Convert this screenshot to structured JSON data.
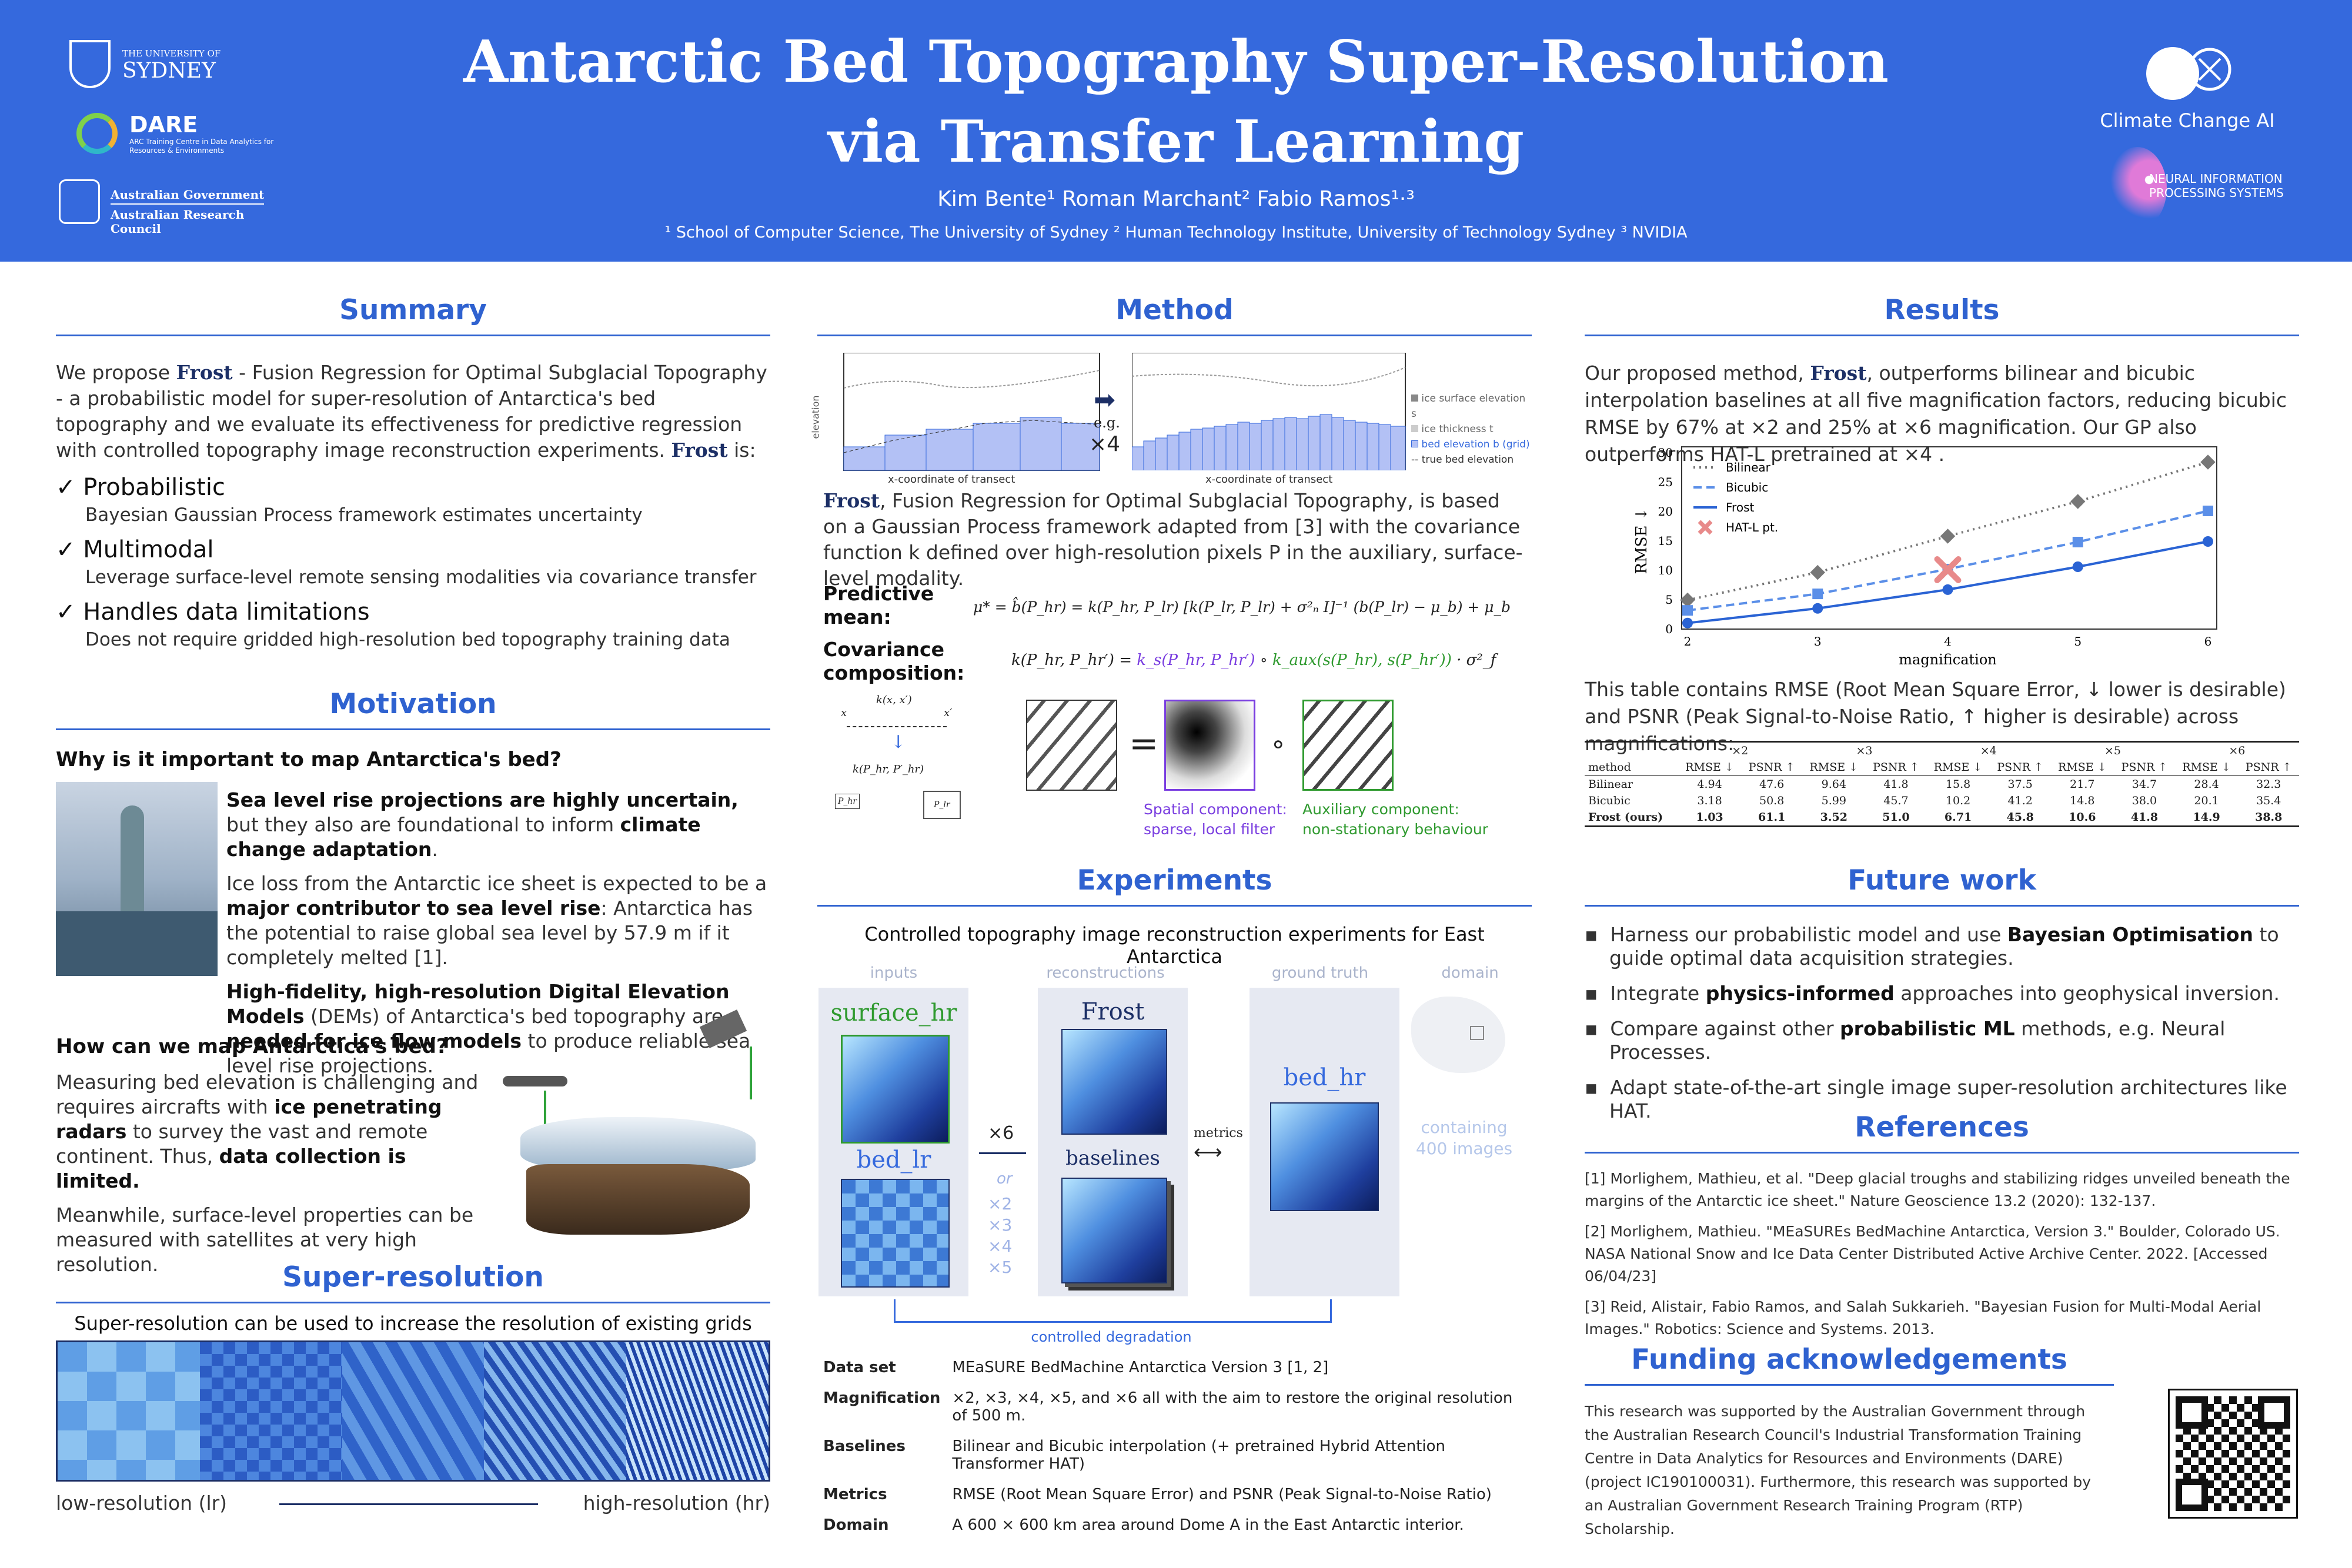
{
  "header": {
    "title_line1": "Antarctic Bed Topography Super-Resolution",
    "title_line2": "via Transfer Learning",
    "authors": "Kim Bente¹  Roman Marchant²  Fabio Ramos¹·³",
    "affiliations": "¹ School of Computer Science, The University of Sydney   ² Human Technology Institute, University of Technology Sydney   ³ NVIDIA",
    "logo_usyd_small": "THE UNIVERSITY OF",
    "logo_usyd": "SYDNEY",
    "logo_dare": "DARE",
    "logo_dare_sub": "ARC Training Centre in Data Analytics for Resources & Environments",
    "logo_gov1": "Australian Government",
    "logo_gov2": "Australian Research Council",
    "logo_cca": "Climate Change AI",
    "logo_neurips": "NEURAL INFORMATION PROCESSING SYSTEMS"
  },
  "summary": {
    "heading": "Summary",
    "intro1": "We propose",
    "frost": "Frost",
    "intro2": " - Fusion Regression for Optimal Subglacial Topography - a probabilistic model for super-resolution of Antarctica's bed topography and we evaluate its effectiveness for predictive regression with controlled topography image reconstruction experiments.",
    "intro3": " is:",
    "items": [
      {
        "title": "Probabilistic",
        "desc": "Bayesian Gaussian Process framework estimates uncertainty"
      },
      {
        "title": "Multimodal",
        "desc": "Leverage surface-level remote sensing modalities via covariance transfer"
      },
      {
        "title": "Handles data limitations",
        "desc": "Does not require gridded high-resolution bed topography training data"
      }
    ]
  },
  "motivation": {
    "heading": "Motivation",
    "q1": "Why is it important to map Antarctica's bed?",
    "p1a": "Sea level rise projections are highly uncertain,",
    "p1b": " but they also are foundational to inform ",
    "p1c": "climate change adaptation",
    "p1d": ".",
    "p2a": "Ice loss from the Antarctic ice sheet is expected to be a ",
    "p2b": "major contributor to sea level rise",
    "p2c": ": Antarctica has the potential to raise global sea level by 57.9 m if it completely melted [1].",
    "p3a": "High-fidelity, high-resolution Digital Elevation Models",
    "p3b": " (DEMs) of Antarctica's bed topography are ",
    "p3c": "needed for ice flow models",
    "p3d": " to produce reliable sea level rise projections.",
    "q2": "How can we map Antarctica's bed?",
    "p4a": "Measuring bed elevation is challenging and requires aircrafts with ",
    "p4b": "ice penetrating radars",
    "p4c": " to survey the vast and remote continent. Thus, ",
    "p4d": "data collection is limited.",
    "p5": "Meanwhile, surface-level properties can be measured with satellites at very high resolution."
  },
  "superres": {
    "heading": "Super-resolution",
    "caption": "Super-resolution can be used to increase the resolution of existing grids",
    "left": "low-resolution (lr)",
    "right": "high-resolution (hr)"
  },
  "method": {
    "heading": "Method",
    "ylabel": "elevation",
    "xlabel1": "x-coordinate of transect",
    "xlabel2": "x-coordinate of transect",
    "eg": "e.g.",
    "x4": "×4",
    "legend": [
      "ice surface elevation s",
      "ice thickness t",
      "bed elevation b (grid)",
      "true bed elevation"
    ],
    "p_a": ", Fusion Regression for Optimal Subglacial Topography, is based on a Gaussian Process framework adapted from [3] with the covariance function k defined over high-resolution pixels P in the auxiliary, surface-level modality.",
    "pm_label": "Predictive mean:",
    "pm_eq": "μ* = b̂(P_hr) = k(P_hr, P_lr) [k(P_lr, P_lr) + σ²ₙ I]⁻¹ (b(P_lr) − μ_b) + μ_b",
    "cc_label": "Covariance composition:",
    "cc_eq_a": "k(P_hr, P_hr′) = ",
    "cc_eq_b": "k_s(P_hr, P_hr′)",
    "cc_eq_c": " ∘ ",
    "cc_eq_d": "k_aux(s(P_hr), s(P_hr′))",
    "cc_eq_e": " · σ²_f",
    "kx": "k(x, x′)",
    "x": "x",
    "xp": "x′",
    "kp": "k(P_hr, P′_hr)",
    "plr": "P_lr",
    "phr": "P_hr",
    "spatial_t": "Spatial component:",
    "spatial_d": "sparse, local filter",
    "aux_t": "Auxiliary component:",
    "aux_d": "non-stationary behaviour",
    "eq": "=",
    "circ": "∘"
  },
  "experiments": {
    "heading": "Experiments",
    "subtitle": "Controlled topography image reconstruction experiments for East Antarctica",
    "col_inputs": "inputs",
    "col_recon": "reconstructions",
    "col_gt": "ground truth",
    "col_domain": "domain",
    "surface": "surface_hr",
    "bed_lr": "bed_lr",
    "frost": "Frost",
    "baselines": "baselines",
    "bed_hr": "bed_hr",
    "x6": "×6",
    "or": "or",
    "factors": [
      "×2",
      "×3",
      "×4",
      "×5"
    ],
    "metrics": "metrics",
    "containing": "containing 400 images",
    "degradation": "controlled degradation",
    "rows": [
      {
        "k": "Data set",
        "v": "MEaSURE BedMachine Antarctica Version 3 [1, 2]"
      },
      {
        "k": "Magnification",
        "v": "×2, ×3, ×4, ×5, and ×6 all with the aim to restore the original resolution of 500 m."
      },
      {
        "k": "Baselines",
        "v": "Bilinear and Bicubic interpolation (+ pretrained Hybrid Attention Transformer HAT)"
      },
      {
        "k": "Metrics",
        "v": "RMSE (Root Mean Square Error) and PSNR (Peak Signal-to-Noise Ratio)"
      },
      {
        "k": "Domain",
        "v": "A 600 × 600 km area around Dome A in the East Antarctic interior."
      }
    ]
  },
  "results": {
    "heading": "Results",
    "p1a": "Our proposed method, ",
    "p1b": ", outperforms bilinear and bicubic interpolation baselines at all five magnification factors, reducing bicubic RMSE by 67% at ×2 and 25% at ×6 magnification. Our GP also outperforms HAT-L pretrained at ×4 .",
    "p2": "This table contains RMSE (Root Mean Square Error, ↓ lower is desirable) and PSNR (Peak Signal-to-Noise Ratio, ↑ higher is desirable) across magnifications:",
    "table": {
      "groups": [
        "×2",
        "×3",
        "×4",
        "×5",
        "×6"
      ],
      "method": "method",
      "rmse": "RMSE ↓",
      "psnr": "PSNR ↑",
      "rows": [
        {
          "name": "Bilinear",
          "vals": [
            "4.94",
            "47.6",
            "9.64",
            "41.8",
            "15.8",
            "37.5",
            "21.7",
            "34.7",
            "28.4",
            "32.3"
          ]
        },
        {
          "name": "Bicubic",
          "vals": [
            "3.18",
            "50.8",
            "5.99",
            "45.7",
            "10.2",
            "41.2",
            "14.8",
            "38.0",
            "20.1",
            "35.4"
          ]
        },
        {
          "name": "Frost (ours)",
          "vals": [
            "1.03",
            "61.1",
            "3.52",
            "51.0",
            "6.71",
            "45.8",
            "10.6",
            "41.8",
            "14.9",
            "38.8"
          ]
        }
      ]
    }
  },
  "chart_data": {
    "type": "line",
    "x": [
      2,
      3,
      4,
      5,
      6
    ],
    "xlabel": "magnification",
    "ylabel": "RMSE ↓",
    "ylim": [
      0,
      30
    ],
    "yticks": [
      0,
      5,
      10,
      15,
      20,
      25,
      30
    ],
    "legend_position": "top-left",
    "series": [
      {
        "name": "Bilinear",
        "values": [
          4.94,
          9.64,
          15.8,
          21.7,
          28.4
        ],
        "color": "#777777"
      },
      {
        "name": "Bicubic",
        "values": [
          3.18,
          5.99,
          10.2,
          14.8,
          20.1
        ],
        "color": "#5b8fe8"
      },
      {
        "name": "Frost",
        "values": [
          1.03,
          3.52,
          6.71,
          10.6,
          14.9
        ],
        "color": "#2a63d4"
      },
      {
        "name": "HAT-L pt.",
        "x": [
          4
        ],
        "values": [
          10.1
        ],
        "color": "#e88a8a"
      }
    ]
  },
  "future": {
    "heading": "Future work",
    "items": [
      {
        "a": "Harness our probabilistic model and use ",
        "b": "Bayesian Optimisation",
        "c": " to guide optimal data acquisition strategies."
      },
      {
        "a": "Integrate ",
        "b": "physics-informed",
        "c": " approaches into geophysical inversion."
      },
      {
        "a": "Compare against other ",
        "b": "probabilistic ML",
        "c": " methods, e.g. Neural Processes."
      },
      {
        "a": "Adapt state-of-the-art single image super-resolution architectures like HAT.",
        "b": "",
        "c": ""
      }
    ]
  },
  "references": {
    "heading": "References",
    "items": [
      "[1] Morlighem, Mathieu, et al. \"Deep glacial troughs and stabilizing ridges unveiled beneath the margins of the Antarctic ice sheet.\" Nature Geoscience 13.2 (2020): 132-137.",
      "[2] Morlighem, Mathieu. \"MEaSUREs BedMachine Antarctica, Version 3.\" Boulder, Colorado US. NASA National Snow and Ice Data Center Distributed Active Archive Center. 2022. [Accessed 06/04/23]",
      "[3] Reid, Alistair, Fabio Ramos, and Salah Sukkarieh. \"Bayesian Fusion for Multi-Modal Aerial Images.\" Robotics: Science and Systems. 2013."
    ]
  },
  "funding": {
    "heading": "Funding acknowledgements",
    "text": "This research was supported by the Australian Government through the Australian Research Council's Industrial Transformation Training Centre in Data Analytics for Resources and Environments (DARE) (project IC190100031). Furthermore, this research was supported by an Australian Government Research Training Program (RTP) Scholarship."
  }
}
